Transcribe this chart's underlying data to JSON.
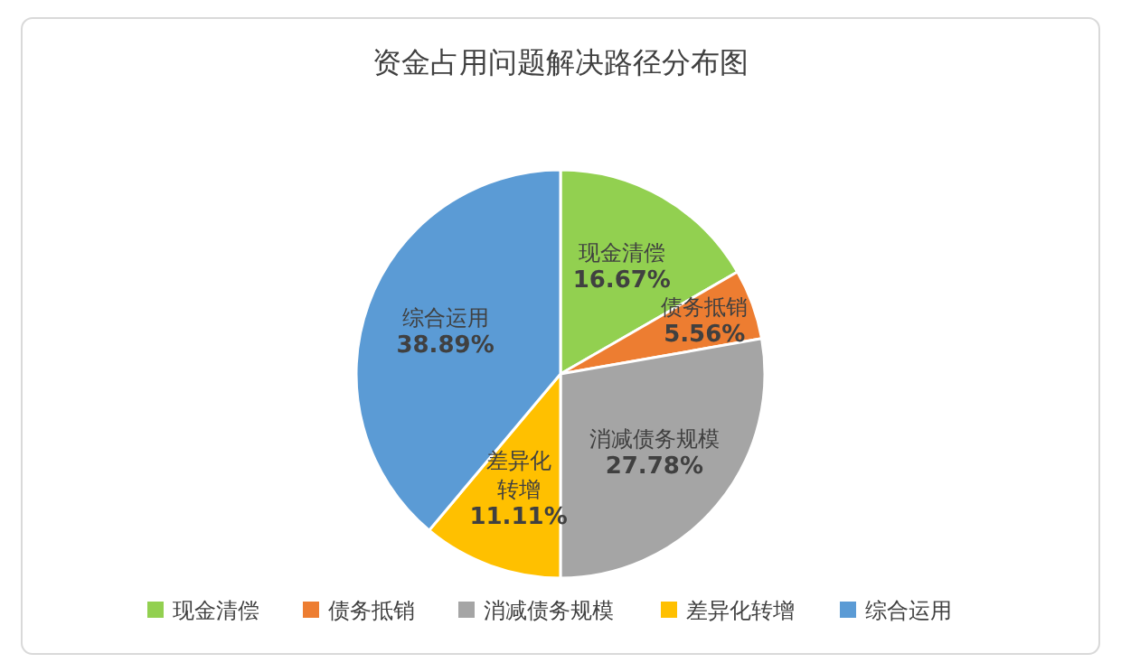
{
  "chart_data": {
    "type": "pie",
    "title": "资金占用问题解决路径分布图",
    "categories": [
      "现金清偿",
      "债务抵销",
      "消减债务规模",
      "差异化转增",
      "综合运用"
    ],
    "values": [
      16.67,
      5.56,
      27.78,
      11.11,
      38.89
    ],
    "colors": [
      "#92d050",
      "#ed7d31",
      "#a5a5a5",
      "#ffc000",
      "#5b9bd5"
    ],
    "value_labels": [
      "16.67%",
      "5.56%",
      "27.78%",
      "11.11%",
      "38.89%"
    ],
    "legend": "bottom"
  }
}
